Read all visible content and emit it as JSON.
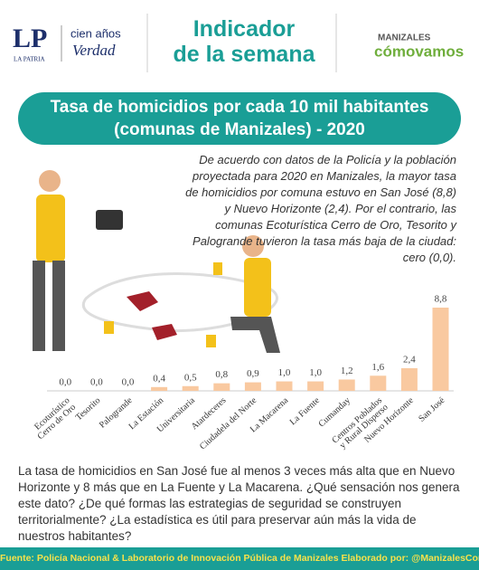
{
  "header": {
    "logo": "LP",
    "logo_sub": "LA PATRIA",
    "slogan_top": "cien años",
    "slogan_bottom": "Verdad",
    "heading": "Indicador\nde la semana",
    "partner_top": "MANIZALES",
    "partner_bottom": "cómovamos"
  },
  "chart_data": {
    "type": "bar",
    "title": "Tasa de homicidios por cada 10 mil habitantes\n(comunas de Manizales) - 2020",
    "categories": [
      "Ecoturístico\nCerro de Oro",
      "Tesorito",
      "Palogrande",
      "La Estación",
      "Universitaria",
      "Atardeceres",
      "Ciudadela del Norte",
      "La Macarena",
      "La Fuente",
      "Cumanday",
      "Centros Poblados\ny Rural Disperso",
      "Nuevo Horizonte",
      "San José"
    ],
    "values": [
      0.0,
      0.0,
      0.0,
      0.4,
      0.5,
      0.8,
      0.9,
      1.0,
      1.0,
      1.2,
      1.6,
      2.4,
      8.8
    ],
    "value_labels": [
      "0,0",
      "0,0",
      "0,0",
      "0,4",
      "0,5",
      "0,8",
      "0,9",
      "1,0",
      "1,0",
      "1,2",
      "1,6",
      "2,4",
      "8,8"
    ],
    "color": "#f9c9a0"
  },
  "description": "De acuerdo con datos de la Policía y la población proyectada para 2020 en Manizales, la mayor tasa de homicidios por comuna estuvo en San José (8,8) y Nuevo Horizonte (2,4). Por el contrario, las comunas Ecoturística Cerro de Oro, Tesorito y Palogrande tuvieron la tasa más baja de la ciudad: cero (0,0).",
  "paragraph": "La tasa de homicidios en San José fue al menos 3 veces más alta que en Nuevo Horizonte y 8 más que en La Fuente y La Macarena. ¿Qué sensación nos genera este dato? ¿De qué formas las estrategias de seguridad se construyen territorialmente? ¿La estadística es útil para preservar aún más la vida de nuestros habitantes?",
  "source": "Fuente: Policía Nacional & Laboratorio de Innovación Pública de Manizales Elaborado por: @ManizalesComoVamos"
}
